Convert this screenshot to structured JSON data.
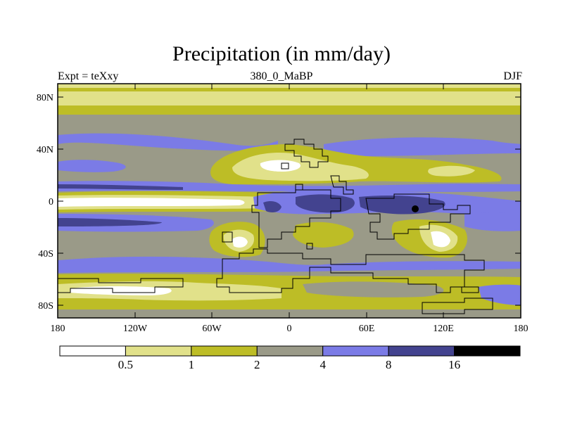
{
  "map": {
    "title": "Precipitation (in mm/day)",
    "left_label": "Expt = teXxy",
    "center_label": "380_0_MaBP",
    "right_label": "DJF",
    "lat_ticks": [
      "80N",
      "40N",
      "0",
      "40S",
      "80S"
    ],
    "lon_ticks": [
      "180",
      "120W",
      "60W",
      "0",
      "60E",
      "120E",
      "180"
    ]
  },
  "legend": {
    "labels": [
      "0.5",
      "1",
      "2",
      "4",
      "8",
      "16"
    ],
    "colors": [
      "#ffffff",
      "#e1e18a",
      "#bdbd26",
      "#9a9a88",
      "#7b7be6",
      "#43438f",
      "#000000"
    ]
  }
}
